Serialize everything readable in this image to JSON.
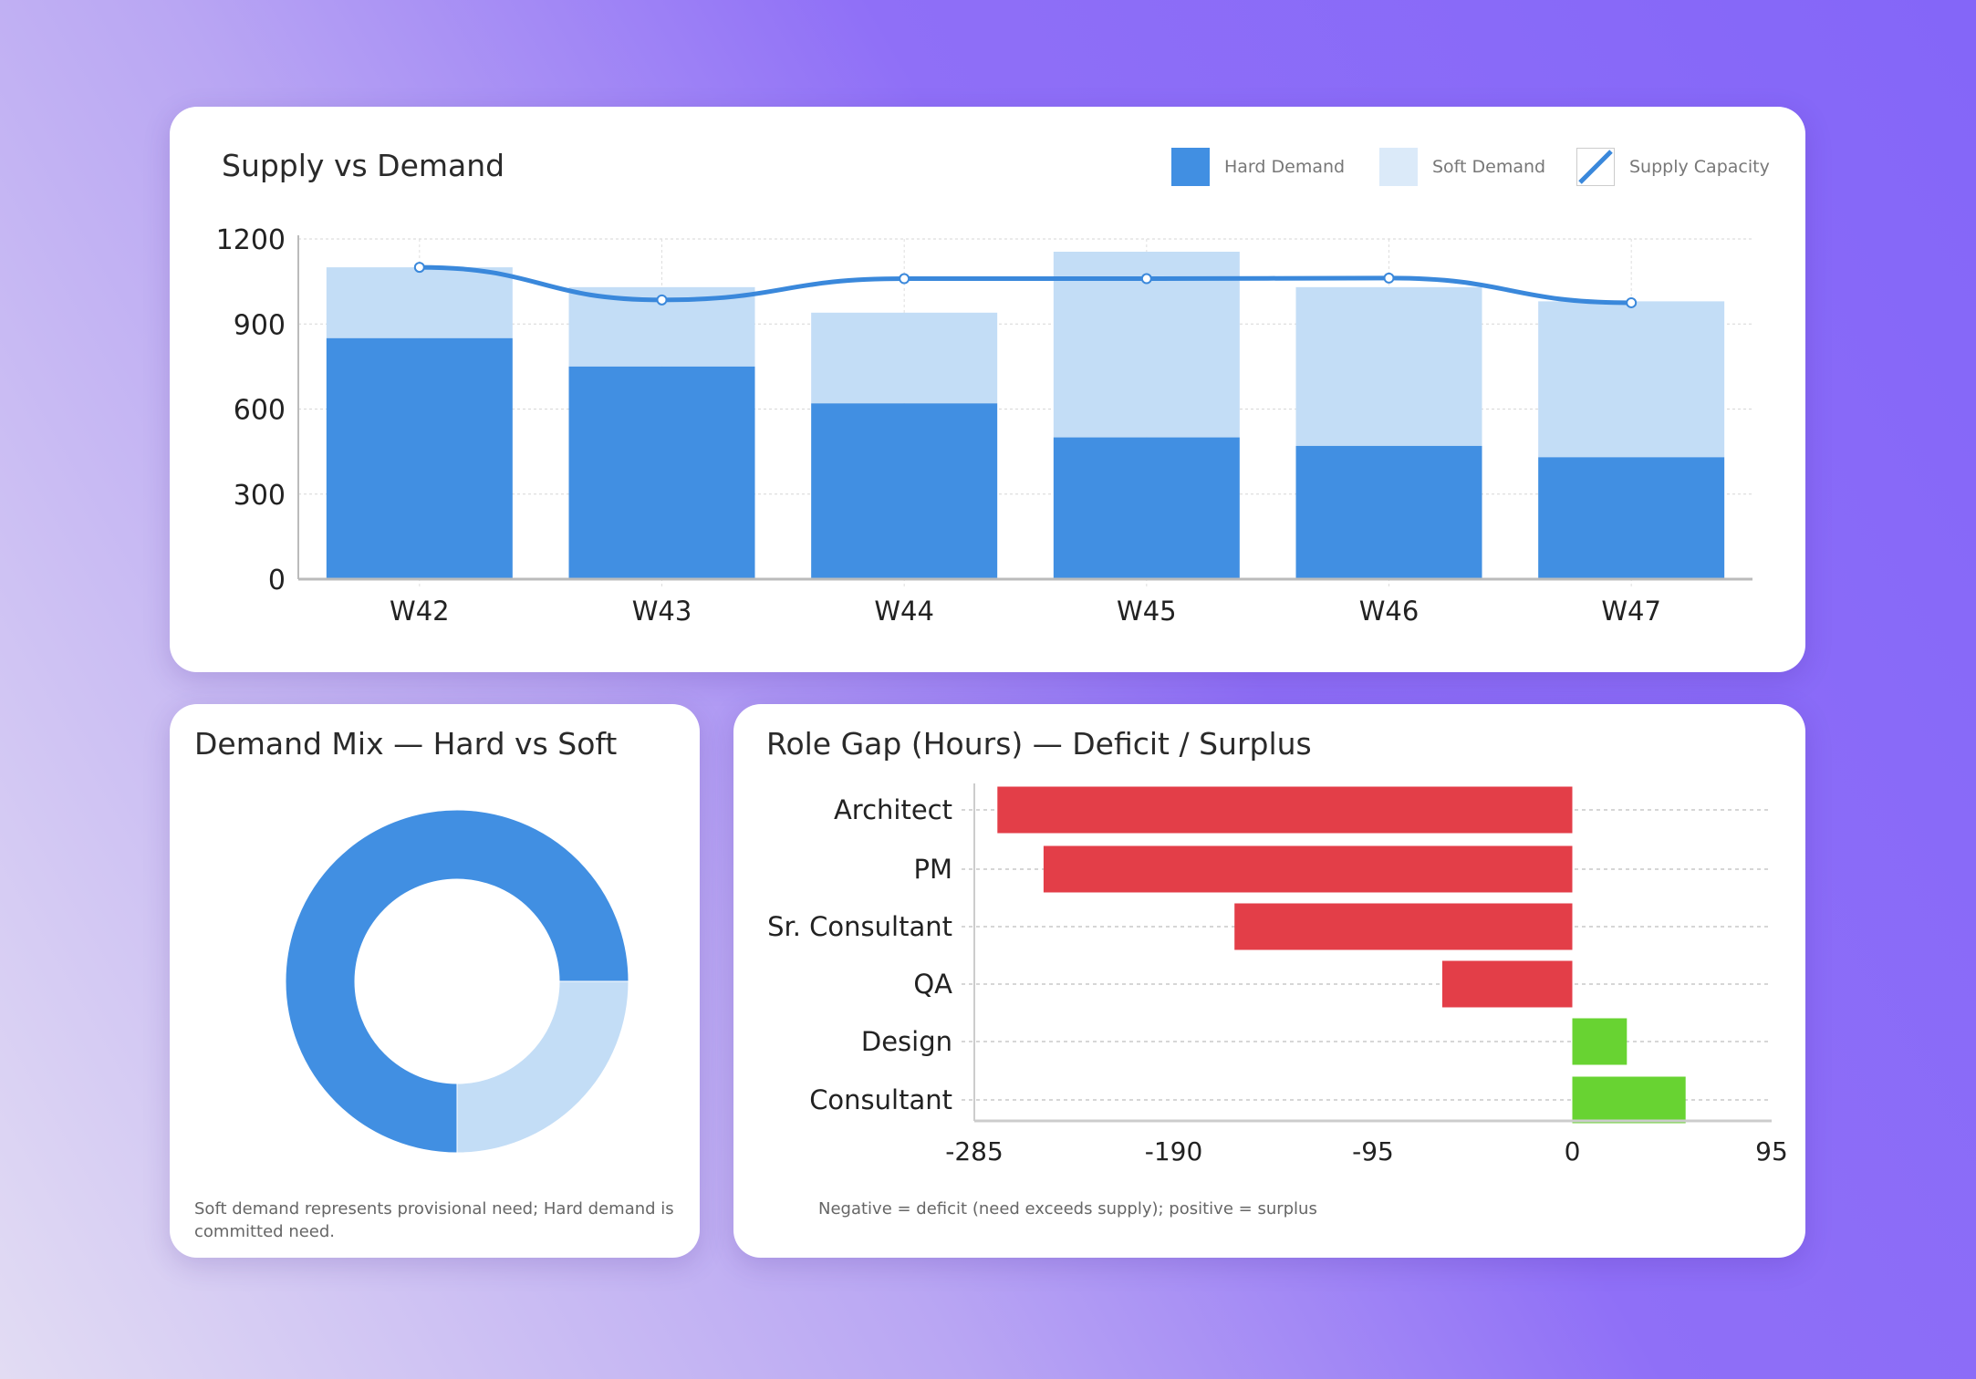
{
  "colors": {
    "hard": "#418fe2",
    "soft": "#c3ddf6",
    "line": "#3a88db",
    "deficit": "#e33e48",
    "surplus": "#68d332"
  },
  "chart_data": [
    {
      "type": "bar",
      "stacked": true,
      "title": "Supply vs Demand",
      "categories": [
        "W42",
        "W43",
        "W44",
        "W45",
        "W46",
        "W47"
      ],
      "series": [
        {
          "name": "Hard Demand",
          "type": "bar",
          "values": [
            850,
            750,
            620,
            500,
            470,
            430
          ]
        },
        {
          "name": "Soft Demand",
          "type": "bar",
          "values": [
            250,
            280,
            320,
            655,
            560,
            550
          ]
        },
        {
          "name": "Supply Capacity",
          "type": "line",
          "values": [
            1100,
            985,
            1060,
            1060,
            1062,
            975
          ]
        }
      ],
      "yticks": [
        "0",
        "300",
        "600",
        "900",
        "1200"
      ],
      "ylim": [
        0,
        1200
      ],
      "grid": true,
      "legend": "top-right"
    },
    {
      "type": "pie",
      "donut": true,
      "title": "Demand Mix — Hard vs Soft",
      "slices": [
        {
          "name": "Hard",
          "value": 75
        },
        {
          "name": "Soft",
          "value": 25
        }
      ],
      "note": "Soft demand represents provisional need; Hard demand is committed need."
    },
    {
      "type": "bar",
      "orientation": "horizontal",
      "title": "Role Gap (Hours) — Deficit / Surplus",
      "categories": [
        "Architect",
        "PM",
        "Sr. Consultant",
        "QA",
        "Design",
        "Consultant"
      ],
      "values": [
        -274,
        -252,
        -161,
        -62,
        26,
        54
      ],
      "xticks": [
        "-285",
        "-190",
        "-95",
        "0",
        "95"
      ],
      "xlim": [
        -285,
        95
      ],
      "grid": true,
      "note": "Negative = deficit (need exceeds supply); positive = surplus"
    }
  ]
}
